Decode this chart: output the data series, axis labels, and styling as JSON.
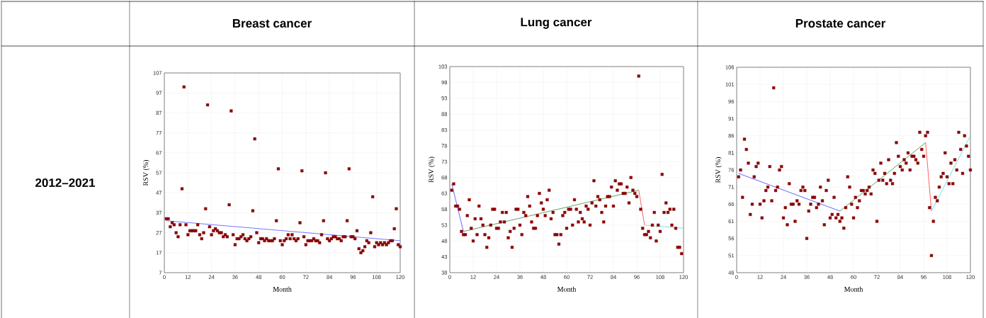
{
  "chart_data": [
    {
      "type": "scatter",
      "title": "Breast cancer",
      "xlabel": "Month",
      "ylabel": "RSV (%)",
      "annotations": [
        "2012–2021"
      ],
      "grid": true,
      "marker": "square",
      "xlim": [
        0,
        120
      ],
      "xticks": [
        0,
        12,
        24,
        36,
        48,
        60,
        72,
        84,
        96,
        108,
        120
      ],
      "ylim": [
        7,
        107
      ],
      "yticks": [
        7,
        17,
        27,
        37,
        47,
        57,
        67,
        77,
        87,
        97,
        107
      ],
      "x": [
        1,
        2,
        3,
        4,
        5,
        6,
        7,
        8,
        9,
        10,
        11,
        12,
        13,
        14,
        15,
        16,
        17,
        18,
        19,
        20,
        21,
        22,
        23,
        24,
        25,
        26,
        27,
        28,
        29,
        30,
        31,
        32,
        33,
        34,
        35,
        36,
        37,
        38,
        39,
        40,
        41,
        42,
        43,
        44,
        45,
        46,
        47,
        48,
        49,
        50,
        51,
        52,
        53,
        54,
        55,
        56,
        57,
        58,
        59,
        60,
        61,
        62,
        63,
        64,
        65,
        66,
        67,
        68,
        69,
        70,
        71,
        72,
        73,
        74,
        75,
        76,
        77,
        78,
        79,
        80,
        81,
        82,
        83,
        84,
        85,
        86,
        87,
        88,
        89,
        90,
        91,
        92,
        93,
        94,
        95,
        96,
        97,
        98,
        99,
        100,
        101,
        102,
        103,
        104,
        105,
        106,
        107,
        108,
        109,
        110,
        111,
        112,
        113,
        114,
        115,
        116,
        117,
        118,
        119,
        120
      ],
      "series": [
        {
          "color": "#8b0000",
          "values": [
            34,
            34,
            30,
            32,
            31,
            27,
            25,
            31,
            49,
            100,
            31,
            26,
            28,
            28,
            28,
            28,
            31,
            26,
            24,
            27,
            39,
            91,
            30,
            26,
            28,
            29,
            28,
            27,
            27,
            25,
            26,
            25,
            41,
            88,
            26,
            21,
            24,
            24,
            25,
            26,
            24,
            23,
            24,
            25,
            38,
            74,
            27,
            22,
            24,
            24,
            23,
            24,
            23,
            23,
            23,
            24,
            33,
            59,
            23,
            21,
            23,
            24,
            26,
            24,
            26,
            24,
            23,
            24,
            32,
            58,
            25,
            21,
            23,
            23,
            23,
            24,
            23,
            23,
            22,
            26,
            33,
            57,
            24,
            23,
            24,
            25,
            25,
            24,
            24,
            23,
            25,
            25,
            33,
            59,
            25,
            25,
            24,
            28,
            19,
            17,
            18,
            20,
            23,
            22,
            27,
            45,
            20,
            22,
            21,
            22,
            21,
            22,
            21,
            22,
            23,
            23,
            29,
            39,
            21,
            20
          ]
        },
        {
          "type": "line",
          "marker": "none",
          "color": "#6666ff",
          "x": [
            1,
            120
          ],
          "values": [
            33,
            23
          ]
        }
      ]
    },
    {
      "type": "scatter",
      "title": "Lung cancer",
      "xlabel": "Month",
      "ylabel": "RSV (%)",
      "grid": true,
      "marker": "square",
      "xlim": [
        0,
        120
      ],
      "xticks": [
        0,
        12,
        24,
        36,
        48,
        60,
        72,
        84,
        96,
        108,
        120
      ],
      "ylim": [
        38,
        103
      ],
      "yticks": [
        38,
        43,
        48,
        53,
        58,
        63,
        68,
        73,
        78,
        83,
        88,
        93,
        98,
        103
      ],
      "x": [
        1,
        2,
        3,
        4,
        5,
        6,
        7,
        8,
        9,
        10,
        11,
        12,
        13,
        14,
        15,
        16,
        17,
        18,
        19,
        20,
        21,
        22,
        23,
        24,
        25,
        26,
        27,
        28,
        29,
        30,
        31,
        32,
        33,
        34,
        35,
        36,
        37,
        38,
        39,
        40,
        41,
        42,
        43,
        44,
        45,
        46,
        47,
        48,
        49,
        50,
        51,
        52,
        53,
        54,
        55,
        56,
        57,
        58,
        59,
        60,
        61,
        62,
        63,
        64,
        65,
        66,
        67,
        68,
        69,
        70,
        71,
        72,
        73,
        74,
        75,
        76,
        77,
        78,
        79,
        80,
        81,
        82,
        83,
        84,
        85,
        86,
        87,
        88,
        89,
        90,
        91,
        92,
        93,
        94,
        95,
        96,
        97,
        98,
        99,
        100,
        101,
        102,
        103,
        104,
        105,
        106,
        107,
        108,
        109,
        110,
        111,
        112,
        113,
        114,
        115,
        116,
        117,
        118,
        119
      ],
      "series": [
        {
          "color": "#8b0000",
          "values": [
            64,
            66,
            59,
            59,
            58,
            51,
            50,
            50,
            56,
            61,
            52,
            48,
            55,
            50,
            59,
            55,
            53,
            50,
            46,
            49,
            53,
            58,
            58,
            52,
            52,
            54,
            57,
            54,
            57,
            49,
            51,
            46,
            52,
            58,
            58,
            53,
            50,
            57,
            56,
            62,
            59,
            54,
            52,
            52,
            56,
            63,
            60,
            58,
            56,
            61,
            64,
            55,
            57,
            50,
            50,
            47,
            50,
            56,
            57,
            52,
            58,
            58,
            53,
            61,
            58,
            54,
            57,
            55,
            54,
            59,
            58,
            53,
            60,
            67,
            59,
            62,
            61,
            57,
            54,
            59,
            62,
            62,
            65,
            59,
            67,
            64,
            66,
            66,
            63,
            63,
            65,
            60,
            68,
            64,
            63,
            62,
            100,
            58,
            52,
            50,
            50,
            51,
            49,
            53,
            57,
            48,
            53,
            51,
            69,
            57,
            60,
            57,
            58,
            53,
            58,
            52,
            46,
            46,
            44
          ]
        },
        {
          "type": "line",
          "marker": "none",
          "color": "#5555ff",
          "x": [
            1,
            7
          ],
          "values": [
            66,
            51
          ]
        },
        {
          "type": "line",
          "marker": "none",
          "color": "#4c9a4c",
          "x": [
            7,
            97
          ],
          "values": [
            51,
            64
          ]
        },
        {
          "type": "line",
          "marker": "none",
          "color": "#ff5050",
          "x": [
            97,
            100
          ],
          "values": [
            64,
            53
          ]
        },
        {
          "type": "line",
          "marker": "none",
          "color": "#66dddd",
          "x": [
            100,
            120
          ],
          "values": [
            53,
            52
          ]
        }
      ]
    },
    {
      "type": "scatter",
      "title": "Prostate cancer",
      "xlabel": "Month",
      "ylabel": "RSV (%)",
      "grid": true,
      "marker": "square",
      "xlim": [
        0,
        120
      ],
      "xticks": [
        0,
        12,
        24,
        36,
        48,
        60,
        72,
        84,
        96,
        108,
        120
      ],
      "ylim": [
        46,
        106
      ],
      "yticks": [
        46,
        51,
        56,
        61,
        66,
        71,
        76,
        81,
        86,
        91,
        96,
        101,
        106
      ],
      "x": [
        1,
        2,
        3,
        4,
        5,
        6,
        7,
        8,
        9,
        10,
        11,
        12,
        13,
        14,
        15,
        16,
        17,
        18,
        19,
        20,
        21,
        22,
        23,
        24,
        25,
        26,
        27,
        28,
        29,
        30,
        31,
        32,
        33,
        34,
        35,
        36,
        37,
        38,
        39,
        40,
        41,
        42,
        43,
        44,
        45,
        46,
        47,
        48,
        49,
        50,
        51,
        52,
        53,
        54,
        55,
        56,
        57,
        58,
        59,
        60,
        61,
        62,
        63,
        64,
        65,
        66,
        67,
        68,
        69,
        70,
        71,
        72,
        73,
        74,
        75,
        76,
        77,
        78,
        79,
        80,
        81,
        82,
        83,
        84,
        85,
        86,
        87,
        88,
        89,
        90,
        91,
        92,
        93,
        94,
        95,
        96,
        97,
        98,
        99,
        100,
        101,
        102,
        103,
        104,
        105,
        106,
        107,
        108,
        109,
        110,
        111,
        112,
        113,
        114,
        115,
        116,
        117,
        118,
        119,
        120
      ],
      "series": [
        {
          "color": "#8b0000",
          "values": [
            74,
            76,
            68,
            85,
            82,
            78,
            63,
            66,
            74,
            77,
            78,
            66,
            62,
            67,
            70,
            71,
            77,
            67,
            100,
            70,
            71,
            76,
            77,
            62,
            65,
            60,
            72,
            66,
            66,
            61,
            67,
            66,
            70,
            71,
            70,
            56,
            64,
            66,
            68,
            68,
            65,
            66,
            71,
            67,
            60,
            70,
            73,
            62,
            63,
            68,
            62,
            63,
            61,
            62,
            59,
            65,
            74,
            71,
            66,
            62,
            68,
            65,
            67,
            70,
            70,
            69,
            70,
            71,
            69,
            76,
            75,
            61,
            73,
            78,
            73,
            75,
            72,
            79,
            73,
            72,
            75,
            84,
            80,
            77,
            76,
            79,
            78,
            81,
            76,
            80,
            80,
            79,
            78,
            87,
            82,
            80,
            86,
            87,
            65,
            51,
            61,
            68,
            67,
            71,
            74,
            75,
            81,
            74,
            72,
            78,
            72,
            79,
            76,
            87,
            82,
            75,
            86,
            83,
            80,
            76
          ]
        },
        {
          "type": "line",
          "marker": "none",
          "color": "#5555ff",
          "x": [
            1,
            53
          ],
          "values": [
            75,
            64
          ]
        },
        {
          "type": "line",
          "marker": "none",
          "color": "#4c9a4c",
          "x": [
            53,
            97
          ],
          "values": [
            64,
            84
          ]
        },
        {
          "type": "line",
          "marker": "none",
          "color": "#ff5050",
          "x": [
            97,
            100
          ],
          "values": [
            84,
            64
          ]
        },
        {
          "type": "line",
          "marker": "none",
          "color": "#66dddd",
          "x": [
            100,
            120
          ],
          "values": [
            64,
            86
          ]
        }
      ]
    }
  ]
}
